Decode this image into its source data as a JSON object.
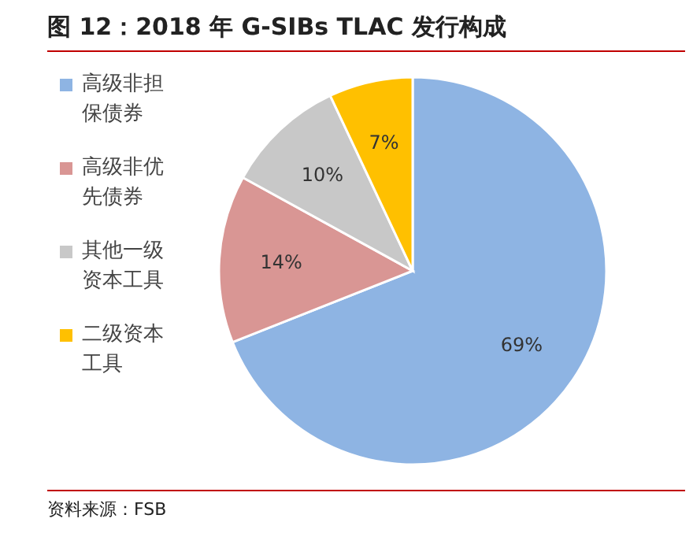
{
  "chart_data": {
    "type": "pie",
    "title": "图 12：2018 年 G-SIBs TLAC 发行构成",
    "categories": [
      "高级非担保债券",
      "高级非优先债券",
      "其他一级资本工具",
      "二级资本工具"
    ],
    "values": [
      69,
      14,
      10,
      7
    ],
    "value_labels": [
      "69%",
      "14%",
      "10%",
      "7%"
    ],
    "colors": [
      "#8eb4e3",
      "#d99694",
      "#c8c8c8",
      "#ffc000"
    ],
    "legend": "left",
    "annotations": [
      "资料来源：FSB"
    ]
  }
}
